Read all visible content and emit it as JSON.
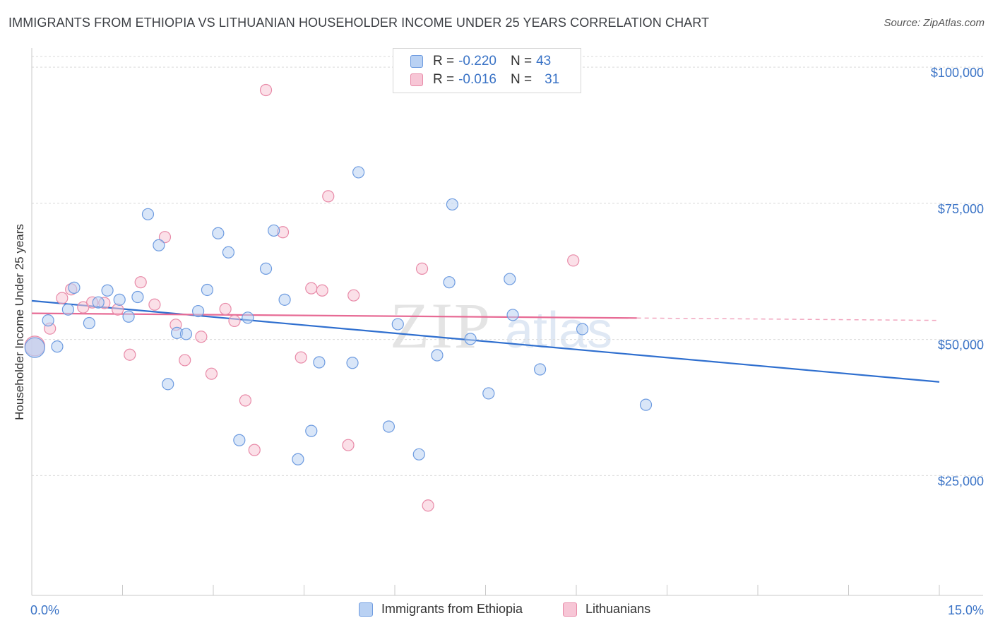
{
  "title": "IMMIGRANTS FROM ETHIOPIA VS LITHUANIAN HOUSEHOLDER INCOME UNDER 25 YEARS CORRELATION CHART",
  "source": "Source: ZipAtlas.com",
  "watermark": {
    "zip": "ZIP",
    "atlas": "atlas"
  },
  "legend": {
    "r_label": "R =",
    "n_label": "N =",
    "series": [
      {
        "r": "-0.220",
        "n": "43"
      },
      {
        "r": "-0.016",
        "n": "31"
      }
    ]
  },
  "colors": {
    "ethiopia_fill": "#b9d1f3",
    "ethiopia_stroke": "#6d9be0",
    "ethiopia_line": "#2f6fcf",
    "lith_fill": "#f7c6d6",
    "lith_stroke": "#e88aa8",
    "lith_line": "#e76b95",
    "axis_text": "#3a73c6",
    "grid": "#d9d9d9"
  },
  "chart_data": {
    "type": "scatter",
    "title": "IMMIGRANTS FROM ETHIOPIA VS LITHUANIAN HOUSEHOLDER INCOME UNDER 25 YEARS CORRELATION CHART",
    "xlabel": "",
    "ylabel": "Householder Income Under 25 years",
    "xlim": [
      0,
      15
    ],
    "ylim": [
      3000,
      103000
    ],
    "x_tick_labels": [
      "0.0%",
      "15.0%"
    ],
    "y_ticks": [
      {
        "value": 25000,
        "label": "$25,000"
      },
      {
        "value": 50000,
        "label": "$50,000"
      },
      {
        "value": 75000,
        "label": "$75,000"
      },
      {
        "value": 100000,
        "label": "$100,000"
      }
    ],
    "series": [
      {
        "name": "Immigrants from Ethiopia",
        "r": -0.22,
        "n": 43,
        "trend": {
          "x0": 0,
          "y0": 57100,
          "x1": 15,
          "y1": 42200,
          "solid_until": 15
        },
        "points": [
          [
            0.05,
            48500
          ],
          [
            0.27,
            53500
          ],
          [
            0.42,
            48700
          ],
          [
            0.6,
            55500
          ],
          [
            0.7,
            59500
          ],
          [
            0.95,
            53000
          ],
          [
            1.1,
            56800
          ],
          [
            1.25,
            59000
          ],
          [
            1.45,
            57300
          ],
          [
            1.6,
            54200
          ],
          [
            1.75,
            57800
          ],
          [
            1.92,
            73000
          ],
          [
            2.1,
            67300
          ],
          [
            2.25,
            41800
          ],
          [
            2.4,
            51200
          ],
          [
            2.55,
            51000
          ],
          [
            2.75,
            55200
          ],
          [
            2.9,
            59100
          ],
          [
            3.08,
            69500
          ],
          [
            3.25,
            66000
          ],
          [
            3.43,
            31500
          ],
          [
            3.57,
            54000
          ],
          [
            3.87,
            63000
          ],
          [
            4.0,
            70000
          ],
          [
            4.18,
            57300
          ],
          [
            4.4,
            28000
          ],
          [
            4.62,
            33200
          ],
          [
            4.75,
            45800
          ],
          [
            5.3,
            45700
          ],
          [
            5.4,
            80700
          ],
          [
            5.9,
            34000
          ],
          [
            6.05,
            52800
          ],
          [
            6.4,
            28900
          ],
          [
            6.7,
            47100
          ],
          [
            6.9,
            60500
          ],
          [
            6.95,
            74800
          ],
          [
            7.25,
            50100
          ],
          [
            7.55,
            40100
          ],
          [
            7.9,
            61100
          ],
          [
            7.95,
            54500
          ],
          [
            8.4,
            44500
          ],
          [
            9.1,
            51900
          ],
          [
            10.15,
            38000
          ]
        ]
      },
      {
        "name": "Lithuanians",
        "r": -0.016,
        "n": 31,
        "trend": {
          "x0": 0,
          "y0": 54800,
          "x1": 15,
          "y1": 53500,
          "solid_until": 10.0
        },
        "points": [
          [
            0.05,
            48800
          ],
          [
            0.3,
            52000
          ],
          [
            0.5,
            57600
          ],
          [
            0.65,
            59200
          ],
          [
            0.85,
            55900
          ],
          [
            1.0,
            56800
          ],
          [
            1.2,
            56700
          ],
          [
            1.42,
            55500
          ],
          [
            1.62,
            47200
          ],
          [
            1.8,
            60500
          ],
          [
            2.03,
            56400
          ],
          [
            2.2,
            68800
          ],
          [
            2.38,
            52700
          ],
          [
            2.53,
            46200
          ],
          [
            2.8,
            50500
          ],
          [
            2.97,
            43700
          ],
          [
            3.2,
            55600
          ],
          [
            3.35,
            53400
          ],
          [
            3.53,
            38800
          ],
          [
            3.68,
            29700
          ],
          [
            3.87,
            95800
          ],
          [
            4.15,
            69700
          ],
          [
            4.45,
            46700
          ],
          [
            4.62,
            59400
          ],
          [
            4.8,
            59000
          ],
          [
            4.9,
            76300
          ],
          [
            5.23,
            30600
          ],
          [
            5.32,
            58100
          ],
          [
            6.45,
            63000
          ],
          [
            6.55,
            19500
          ],
          [
            8.95,
            64500
          ]
        ]
      }
    ],
    "legend_placement": "top-center and bottom"
  }
}
